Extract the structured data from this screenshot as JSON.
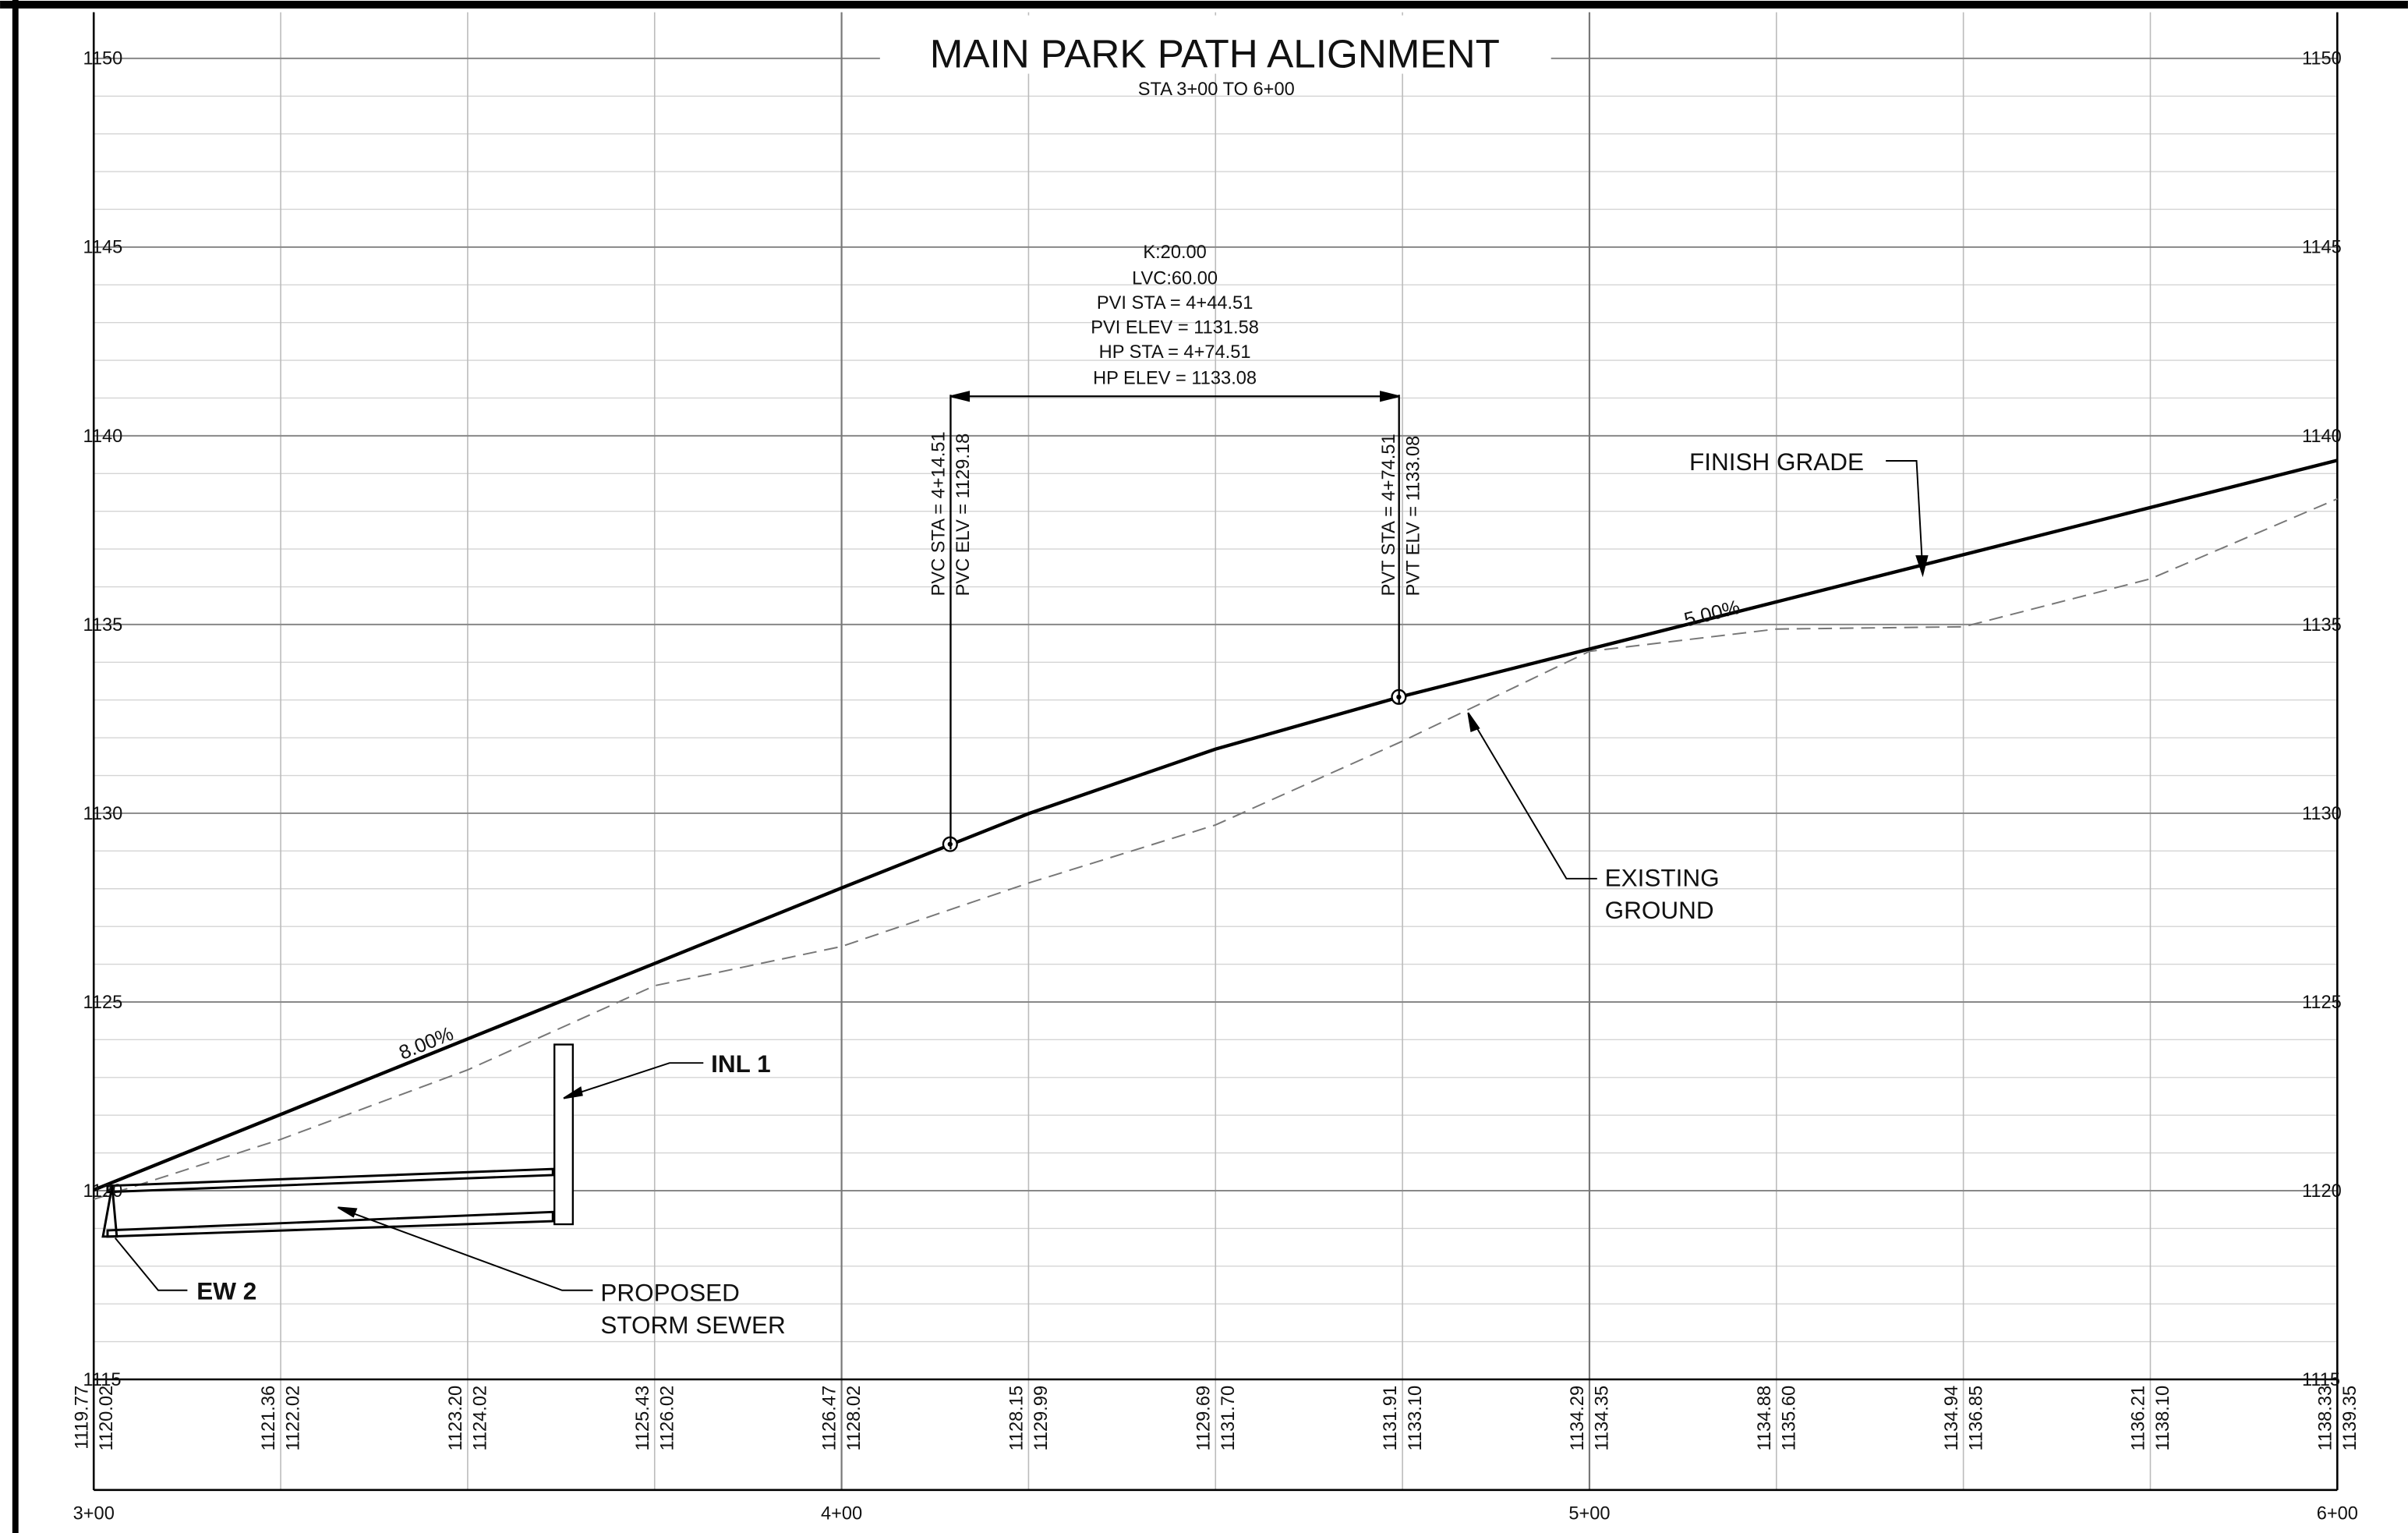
{
  "chart_data": {
    "type": "line",
    "title": "MAIN PARK PATH ALIGNMENT",
    "subtitle": "STA 3+00 TO 6+00",
    "x": [
      300,
      325,
      350,
      375,
      400,
      425,
      450,
      475,
      500,
      525,
      550,
      575,
      600
    ],
    "series": [
      {
        "name": "EXISTING GROUND",
        "color": "#777777",
        "dashed": true,
        "values": [
          1119.77,
          1121.36,
          1123.2,
          1125.43,
          1126.47,
          1128.15,
          1129.69,
          1131.91,
          1134.29,
          1134.88,
          1134.94,
          1136.21,
          1138.33
        ],
        "value_labels": [
          "1119.77",
          "1121.36",
          "1123.20",
          "1125.43",
          "1126.47",
          "1128.15",
          "1129.69",
          "1131.91",
          "1134.29",
          "1134.88",
          "1134.94",
          "1136.21",
          "1138.33"
        ]
      },
      {
        "name": "FINISH GRADE",
        "color": "#000000",
        "dashed": false,
        "values": [
          1120.02,
          1122.02,
          1124.02,
          1126.02,
          1128.02,
          1129.99,
          1131.7,
          1133.1,
          1134.35,
          1135.6,
          1136.85,
          1138.1,
          1139.35
        ],
        "value_labels": [
          "1120.02",
          "1122.02",
          "1124.02",
          "1126.02",
          "1128.02",
          "1129.99",
          "1131.70",
          "1133.10",
          "1134.35",
          "1135.60",
          "1136.85",
          "1138.10",
          "1139.35"
        ]
      }
    ],
    "markers": {
      "x": [
        414.51,
        474.51
      ],
      "y": [
        1129.18,
        1133.08
      ]
    },
    "xlim": [
      300,
      600
    ],
    "xticks": [
      {
        "value": 300,
        "label": "3+00"
      },
      {
        "value": 400,
        "label": "4+00"
      },
      {
        "value": 500,
        "label": "5+00"
      },
      {
        "value": 600,
        "label": "6+00"
      }
    ],
    "ylim": [
      1115,
      1150
    ],
    "yticks": [
      1115,
      1120,
      1125,
      1130,
      1135,
      1140,
      1145,
      1150
    ],
    "grid": true,
    "annotations": [
      "K:20.00",
      "LVC:60.00",
      "PVI STA = 4+44.51",
      "PVI ELEV = 1131.58",
      "HP STA = 4+74.51",
      "HP ELEV = 1133.08",
      "PVC STA = 4+14.51",
      "PVC ELV = 1129.18",
      "PVT STA = 4+74.51",
      "PVT ELV = 1133.08",
      "FINISH GRADE",
      "8.00%",
      "5.00%",
      "EXISTING",
      "GROUND",
      "INL 1",
      "EW 2",
      "PROPOSED",
      "STORM SEWER"
    ]
  }
}
